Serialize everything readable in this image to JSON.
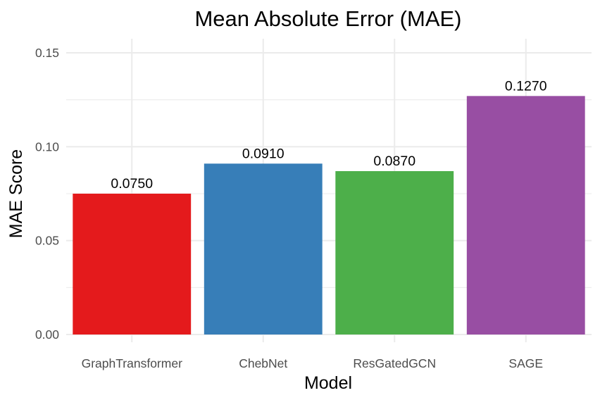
{
  "chart_data": {
    "type": "bar",
    "title": "Mean Absolute Error (MAE)",
    "xlabel": "Model",
    "ylabel": "MAE Score",
    "categories": [
      "GraphTransformer",
      "ChebNet",
      "ResGatedGCN",
      "SAGE"
    ],
    "values": [
      0.075,
      0.091,
      0.087,
      0.127
    ],
    "value_labels": [
      "0.0750",
      "0.0910",
      "0.0870",
      "0.1270"
    ],
    "colors": [
      "#e41a1c",
      "#377eb8",
      "#4daf4a",
      "#984ea3"
    ],
    "ylim": [
      0,
      0.15
    ],
    "yticks": [
      0.0,
      0.05,
      0.1,
      0.15
    ],
    "ytick_labels": [
      "0.00",
      "0.05",
      "0.10",
      "0.15"
    ],
    "grid": true,
    "legend": "none"
  }
}
